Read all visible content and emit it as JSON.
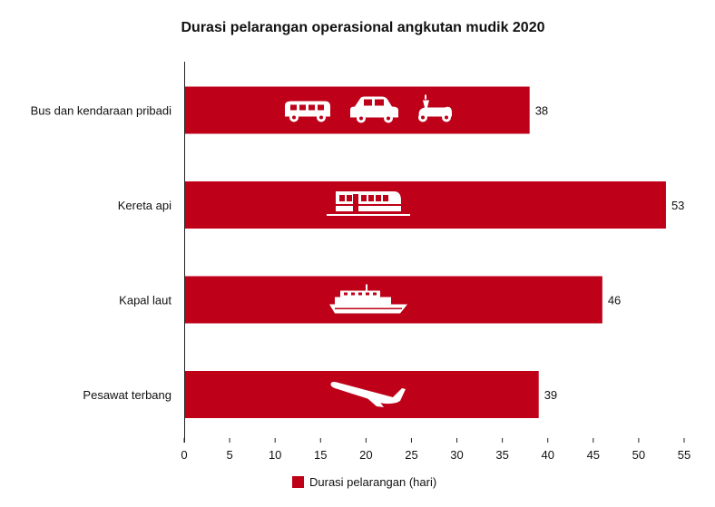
{
  "chart_data": {
    "type": "bar",
    "orientation": "horizontal",
    "title": "Durasi pelarangan operasional angkutan mudik 2020",
    "xlabel": "",
    "ylabel": "",
    "categories": [
      "Bus dan kendaraan pribadi",
      "Kereta api",
      "Kapal laut",
      "Pesawat terbang"
    ],
    "series": [
      {
        "name": "Durasi pelarangan (hari)",
        "values": [
          38,
          53,
          46,
          39
        ],
        "color": "#bf0019"
      }
    ],
    "xlim": [
      0,
      55
    ],
    "xticks": [
      0,
      5,
      10,
      15,
      20,
      25,
      30,
      35,
      40,
      45,
      50,
      55
    ],
    "grid": false,
    "legend_position": "bottom",
    "bar_icons": [
      [
        "bus-icon",
        "car-icon",
        "scooter-icon"
      ],
      [
        "train-icon"
      ],
      [
        "ship-icon"
      ],
      [
        "airplane-icon"
      ]
    ]
  }
}
